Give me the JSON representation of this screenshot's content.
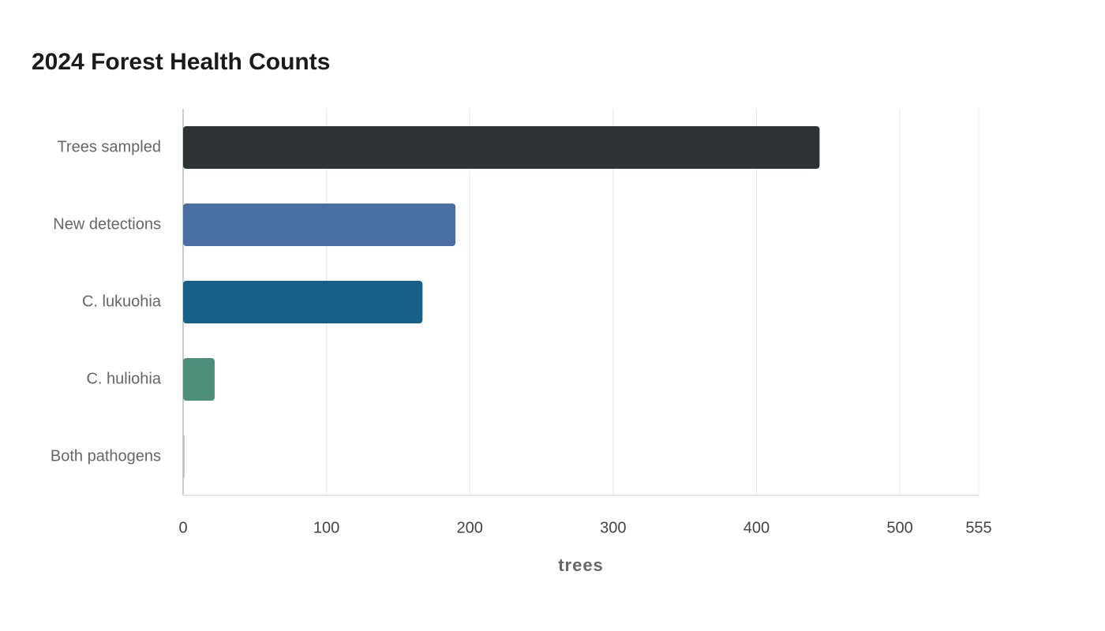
{
  "chart_data": {
    "type": "bar",
    "orientation": "horizontal",
    "title": "2024 Forest Health Counts",
    "categories": [
      "Trees sampled",
      "New detections",
      "C. lukuohia",
      "C. huliohia",
      "Both pathogens"
    ],
    "values": [
      444,
      190,
      167,
      22,
      1
    ],
    "colors": [
      "#2e3436",
      "#4a6fa5",
      "#176087",
      "#4e8f7b",
      "#bdbdbd"
    ],
    "x_label": "trees",
    "xlim": [
      0,
      555
    ],
    "xticks": [
      0,
      100,
      200,
      300,
      400,
      500,
      555
    ],
    "grid": true
  }
}
